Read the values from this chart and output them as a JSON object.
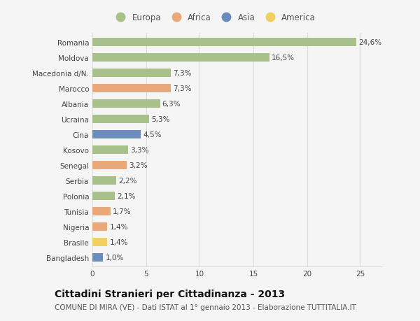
{
  "countries": [
    "Romania",
    "Moldova",
    "Macedonia d/N.",
    "Marocco",
    "Albania",
    "Ucraina",
    "Cina",
    "Kosovo",
    "Senegal",
    "Serbia",
    "Polonia",
    "Tunisia",
    "Nigeria",
    "Brasile",
    "Bangladesh"
  ],
  "values": [
    24.6,
    16.5,
    7.3,
    7.3,
    6.3,
    5.3,
    4.5,
    3.3,
    3.2,
    2.2,
    2.1,
    1.7,
    1.4,
    1.4,
    1.0
  ],
  "labels": [
    "24,6%",
    "16,5%",
    "7,3%",
    "7,3%",
    "6,3%",
    "5,3%",
    "4,5%",
    "3,3%",
    "3,2%",
    "2,2%",
    "2,1%",
    "1,7%",
    "1,4%",
    "1,4%",
    "1,0%"
  ],
  "continents": [
    "Europa",
    "Europa",
    "Europa",
    "Africa",
    "Europa",
    "Europa",
    "Asia",
    "Europa",
    "Africa",
    "Europa",
    "Europa",
    "Africa",
    "Africa",
    "America",
    "Asia"
  ],
  "colors": {
    "Europa": "#a8c08a",
    "Africa": "#e8a87a",
    "Asia": "#6b8cba",
    "America": "#f0d060"
  },
  "legend_colors": {
    "Europa": "#a8c08a",
    "Africa": "#e8a87a",
    "Asia": "#6b8cba",
    "America": "#f0d060"
  },
  "title": "Cittadini Stranieri per Cittadinanza - 2013",
  "subtitle": "COMUNE DI MIRA (VE) - Dati ISTAT al 1° gennaio 2013 - Elaborazione TUTTITALIA.IT",
  "xlim": [
    0,
    27
  ],
  "xticks": [
    0,
    5,
    10,
    15,
    20,
    25
  ],
  "background_color": "#f5f5f5",
  "grid_color": "#dddddd",
  "bar_height": 0.55,
  "label_fontsize": 7.5,
  "title_fontsize": 10,
  "subtitle_fontsize": 7.5,
  "tick_fontsize": 7.5,
  "legend_fontsize": 8.5
}
